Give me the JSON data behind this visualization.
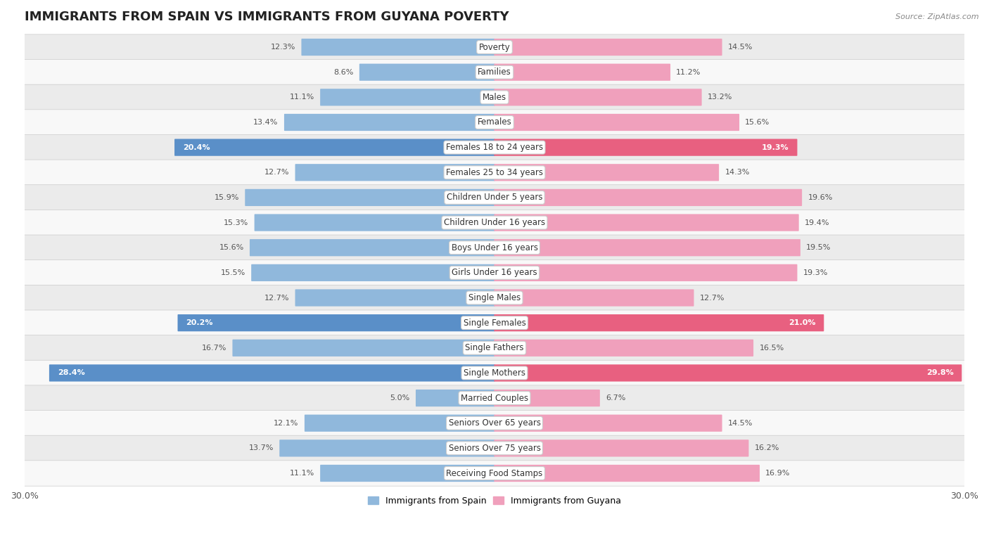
{
  "title": "IMMIGRANTS FROM SPAIN VS IMMIGRANTS FROM GUYANA POVERTY",
  "source": "Source: ZipAtlas.com",
  "categories": [
    "Poverty",
    "Families",
    "Males",
    "Females",
    "Females 18 to 24 years",
    "Females 25 to 34 years",
    "Children Under 5 years",
    "Children Under 16 years",
    "Boys Under 16 years",
    "Girls Under 16 years",
    "Single Males",
    "Single Females",
    "Single Fathers",
    "Single Mothers",
    "Married Couples",
    "Seniors Over 65 years",
    "Seniors Over 75 years",
    "Receiving Food Stamps"
  ],
  "spain_values": [
    12.3,
    8.6,
    11.1,
    13.4,
    20.4,
    12.7,
    15.9,
    15.3,
    15.6,
    15.5,
    12.7,
    20.2,
    16.7,
    28.4,
    5.0,
    12.1,
    13.7,
    11.1
  ],
  "guyana_values": [
    14.5,
    11.2,
    13.2,
    15.6,
    19.3,
    14.3,
    19.6,
    19.4,
    19.5,
    19.3,
    12.7,
    21.0,
    16.5,
    29.8,
    6.7,
    14.5,
    16.2,
    16.9
  ],
  "spain_color": "#90b8dc",
  "guyana_color": "#f0a0bc",
  "spain_highlight_color": "#5a8fc8",
  "guyana_highlight_color": "#e86080",
  "spain_label": "Immigrants from Spain",
  "guyana_label": "Immigrants from Guyana",
  "xlim": 30.0,
  "bar_height": 0.62,
  "bg_color_odd": "#ebebeb",
  "bg_color_even": "#f8f8f8",
  "title_fontsize": 13,
  "label_fontsize": 8.5,
  "value_fontsize": 8,
  "axis_fontsize": 9,
  "highlight_rows": [
    4,
    11,
    13
  ]
}
